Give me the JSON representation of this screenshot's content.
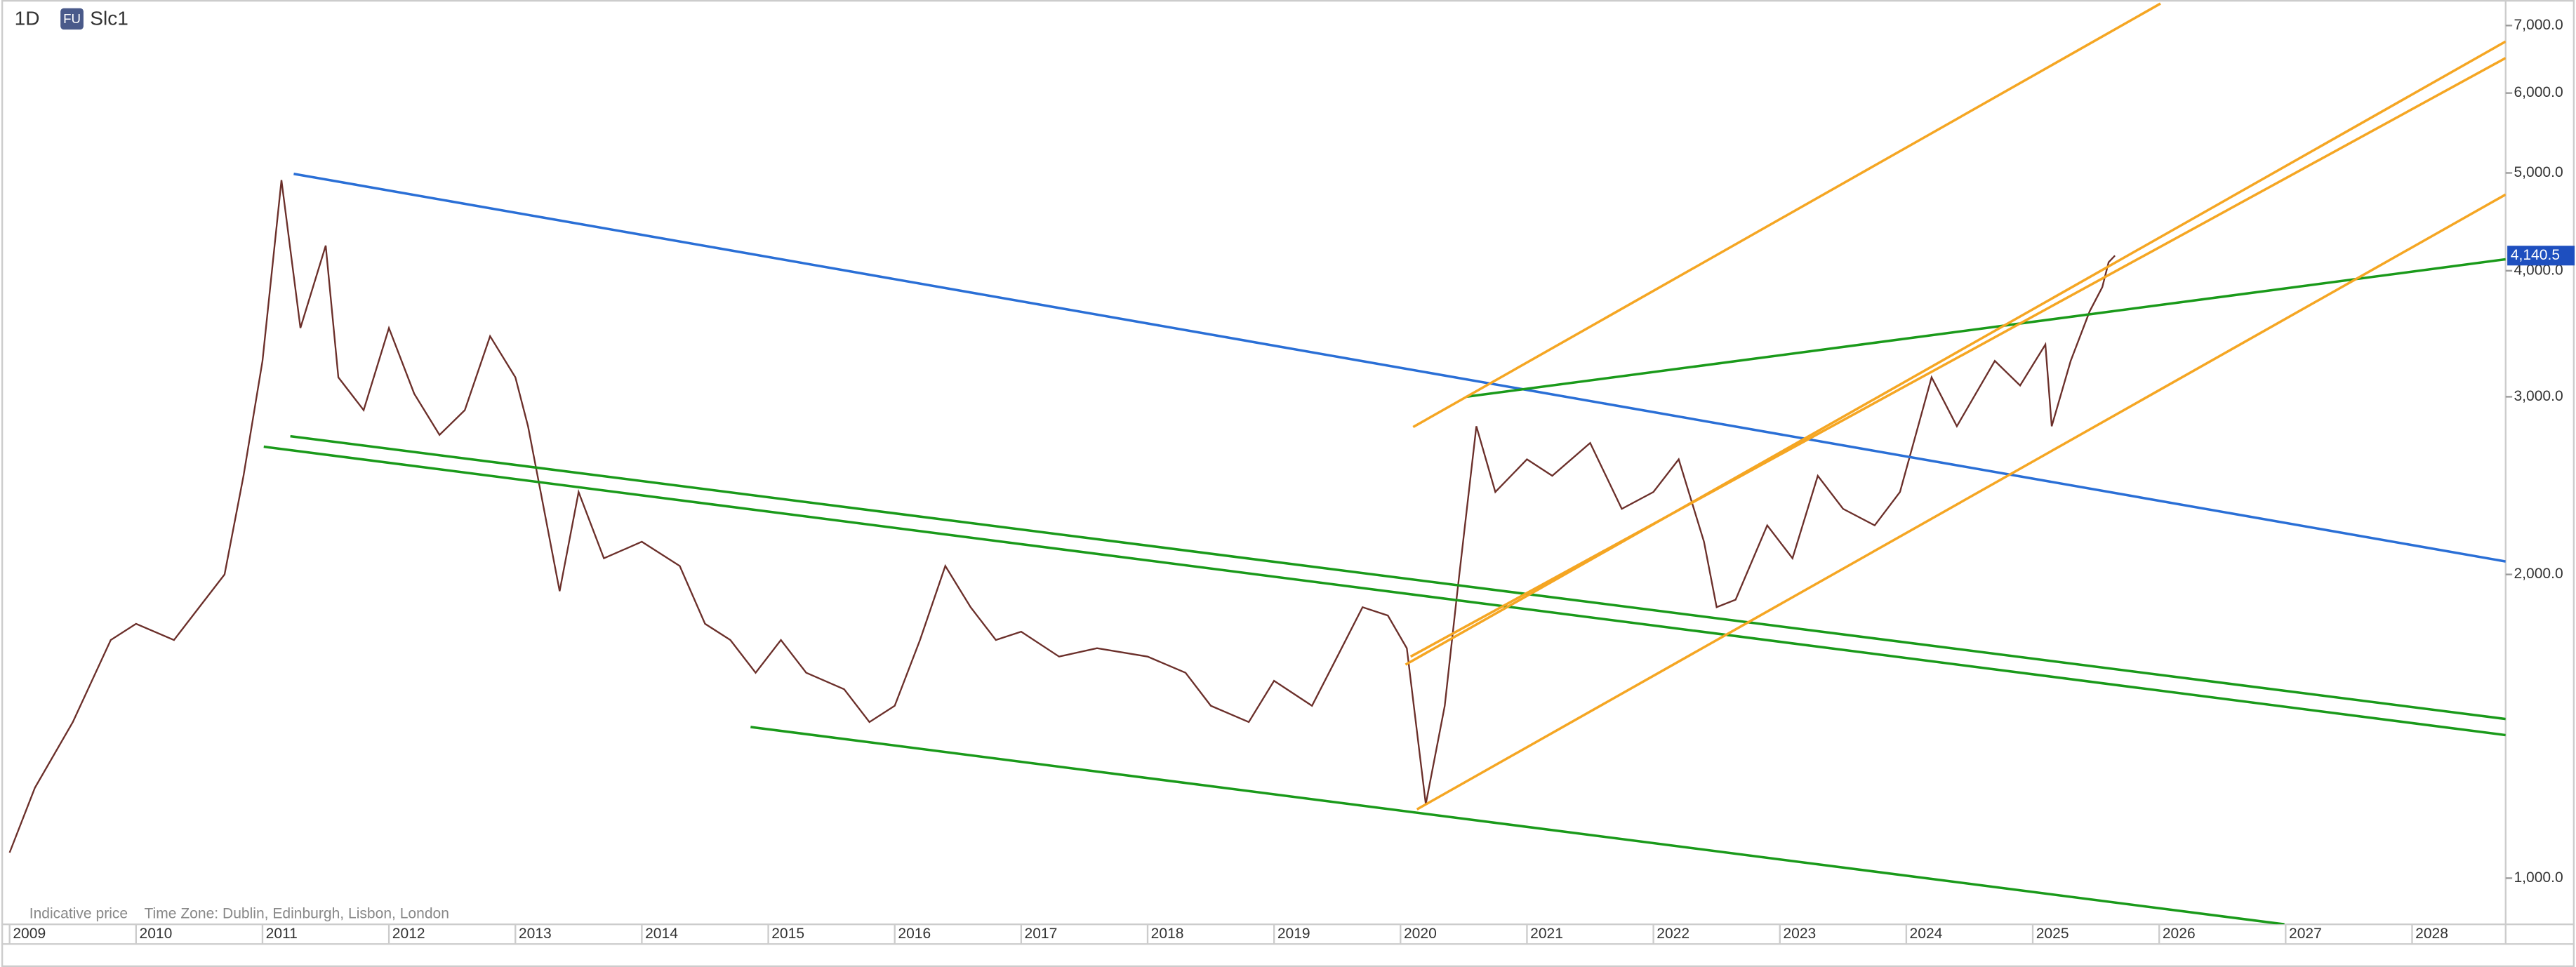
{
  "header": {
    "interval": "1D",
    "badge": "FU",
    "symbol": "Slc1"
  },
  "footer": {
    "note": "Indicative price",
    "timezone": "Time Zone: Dublin, Edinburgh, Lisbon, London"
  },
  "chart_data": {
    "type": "line",
    "log_scale": true,
    "grid": false,
    "xlim": [
      2008.935,
      2028.74
    ],
    "xticks": [
      2009,
      2010,
      2011,
      2012,
      2013,
      2014,
      2015,
      2016,
      2017,
      2018,
      2019,
      2020,
      2021,
      2022,
      2023,
      2024,
      2025,
      2026,
      2027,
      2028
    ],
    "ylim": [
      900,
      7420
    ],
    "yticks": [
      {
        "value": 1000,
        "label": "1,000.0"
      },
      {
        "value": 2000,
        "label": "2,000.0"
      },
      {
        "value": 3000,
        "label": "3,000.0"
      },
      {
        "value": 4000,
        "label": "4,000.0"
      },
      {
        "value": 5000,
        "label": "5,000.0"
      },
      {
        "value": 6000,
        "label": "6,000.0"
      },
      {
        "value": 7000,
        "label": "7,000.0"
      }
    ],
    "last_price": {
      "value": 4140.5,
      "label": "4,140.5",
      "color": "#1e4fbf"
    },
    "series": [
      {
        "color": "#6b2f2a",
        "x": [
          2009.0,
          2009.2,
          2009.5,
          2009.8,
          2010.0,
          2010.3,
          2010.5,
          2010.7,
          2010.85,
          2011.0,
          2011.15,
          2011.3,
          2011.5,
          2011.6,
          2011.8,
          2012.0,
          2012.2,
          2012.4,
          2012.6,
          2012.8,
          2013.0,
          2013.1,
          2013.2,
          2013.35,
          2013.5,
          2013.7,
          2014.0,
          2014.3,
          2014.5,
          2014.7,
          2014.9,
          2015.1,
          2015.3,
          2015.6,
          2015.8,
          2016.0,
          2016.2,
          2016.4,
          2016.6,
          2016.8,
          2017.0,
          2017.3,
          2017.6,
          2018.0,
          2018.3,
          2018.5,
          2018.8,
          2019.0,
          2019.3,
          2019.5,
          2019.7,
          2019.9,
          2020.05,
          2020.2,
          2020.35,
          2020.45,
          2020.6,
          2020.75,
          2021.0,
          2021.2,
          2021.5,
          2021.75,
          2022.0,
          2022.2,
          2022.4,
          2022.5,
          2022.65,
          2022.9,
          2023.1,
          2023.3,
          2023.5,
          2023.75,
          2023.95,
          2024.2,
          2024.4,
          2024.7,
          2024.9,
          2025.1,
          2025.15,
          2025.3,
          2025.45,
          2025.55,
          2025.6,
          2025.65
        ],
        "values": [
          1060,
          1229,
          1428,
          1722,
          1787,
          1722,
          1856,
          2000,
          2505,
          3256,
          4919,
          3510,
          4236,
          3136,
          2910,
          3510,
          3021,
          2750,
          2910,
          3445,
          3136,
          2805,
          2414,
          1925,
          2414,
          2075,
          2155,
          2039,
          1787,
          1722,
          1598,
          1722,
          1598,
          1539,
          1428,
          1482,
          1722,
          2039,
          1856,
          1722,
          1755,
          1658,
          1690,
          1658,
          1598,
          1482,
          1428,
          1569,
          1482,
          1658,
          1856,
          1821,
          1690,
          1184,
          1482,
          1925,
          2805,
          2414,
          2601,
          2505,
          2700,
          2323,
          2414,
          2601,
          2155,
          1856,
          1888,
          2237,
          2075,
          2505,
          2323,
          2237,
          2414,
          3136,
          2805,
          3256,
          3078,
          3380,
          2805,
          3256,
          3646,
          3853,
          4078,
          4140.5
        ]
      },
      {
        "color": "#2a6fd6",
        "x": [
          2011.247,
          2028.74
        ],
        "values": [
          4990,
          2060
        ]
      },
      {
        "color": "#1a9a1a",
        "x": [
          2011.22,
          2028.74
        ],
        "values": [
          2742,
          1438
        ]
      },
      {
        "color": "#1a9a1a",
        "x": [
          2011.01,
          2028.74
        ],
        "values": [
          2677,
          1386
        ]
      },
      {
        "color": "#1a9a1a",
        "x": [
          2014.86,
          2026.99
        ],
        "values": [
          1412,
          900
        ]
      },
      {
        "color": "#1a9a1a",
        "x": [
          2020.52,
          2028.74
        ],
        "values": [
          3000,
          4106
        ]
      },
      {
        "color": "#f5a623",
        "x": [
          2020.1,
          2026.01
        ],
        "values": [
          2800,
          7360
        ]
      },
      {
        "color": "#f5a623",
        "x": [
          2020.04,
          2028.74
        ],
        "values": [
          1628,
          6750
        ]
      },
      {
        "color": "#f5a623",
        "x": [
          2020.08,
          2028.74
        ],
        "values": [
          1658,
          6500
        ]
      },
      {
        "color": "#f5a623",
        "x": [
          2020.13,
          2028.74
        ],
        "values": [
          1170,
          4760
        ]
      }
    ]
  }
}
